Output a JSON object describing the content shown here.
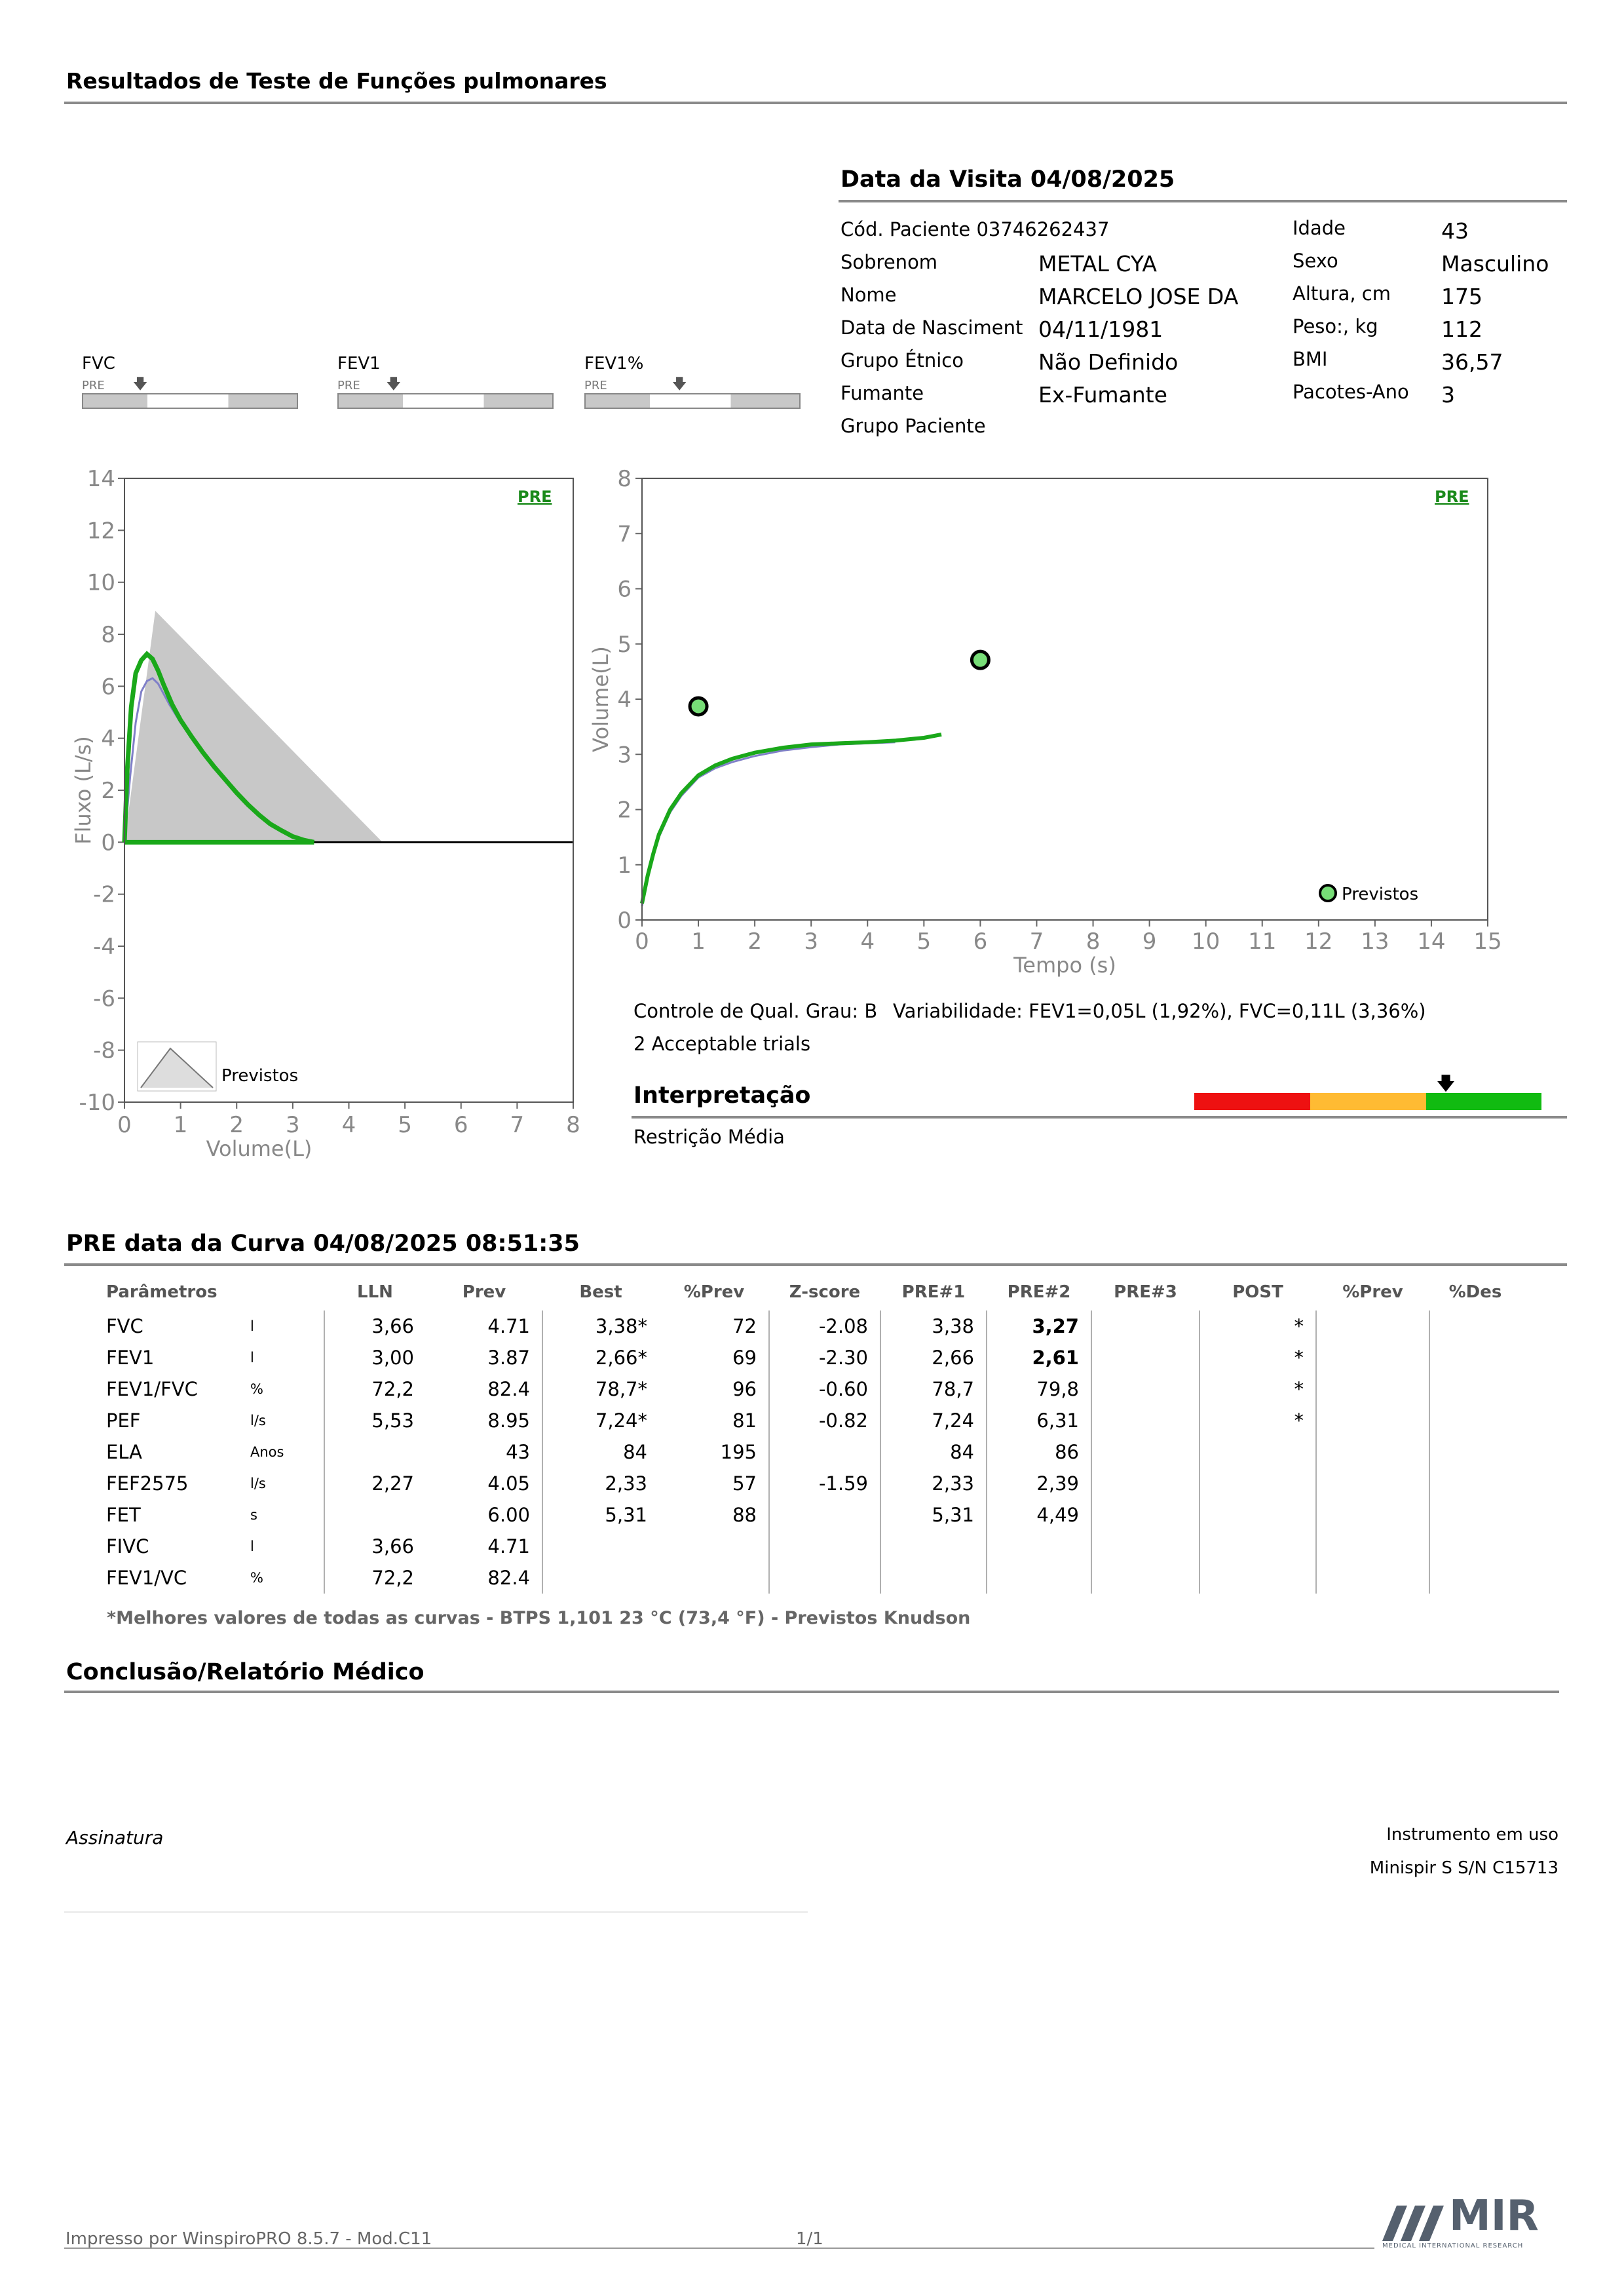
{
  "header": {
    "title": "Resultados de Teste de Funções pulmonares"
  },
  "visit": {
    "title": "Data da Visita 04/08/2025"
  },
  "patient": {
    "left": [
      {
        "label": "Cód. Paciente 03746262437",
        "value": ""
      },
      {
        "label": "Sobrenom",
        "value": "METAL CYA"
      },
      {
        "label": "Nome",
        "value": "MARCELO JOSE DA"
      },
      {
        "label": "Data de Nasciment",
        "value": "04/11/1981"
      },
      {
        "label": "Grupo Étnico",
        "value": "Não Definido"
      },
      {
        "label": "Fumante",
        "value": "Ex-Fumante"
      },
      {
        "label": "Grupo Paciente",
        "value": ""
      }
    ],
    "right": [
      {
        "label": "Idade",
        "value": "43"
      },
      {
        "label": "Sexo",
        "value": "Masculino"
      },
      {
        "label": "Altura, cm",
        "value": "175"
      },
      {
        "label": "Peso:, kg",
        "value": "112"
      },
      {
        "label": "BMI",
        "value": "36,57"
      },
      {
        "label": "Pacotes-Ano",
        "value": "3"
      }
    ]
  },
  "indicators": [
    {
      "label": "FVC",
      "pre": "PRE",
      "marker": 0.26
    },
    {
      "label": "FEV1",
      "pre": "PRE",
      "marker": 0.25
    },
    {
      "label": "FEV1%",
      "pre": "PRE",
      "marker": 0.43
    }
  ],
  "chart_data": [
    {
      "type": "line",
      "name": "flow-volume",
      "tag": "PRE",
      "xlabel": "Volume(L)",
      "ylabel": "Fluxo (L/s)",
      "xlim": [
        0,
        8
      ],
      "ylim": [
        -10,
        14
      ],
      "x_ticks": [
        "0",
        "1",
        "2",
        "3",
        "4",
        "5",
        "6",
        "7",
        "8"
      ],
      "y_ticks": [
        "14",
        "12",
        "10",
        "8",
        "6",
        "4",
        "2",
        "0",
        "-2",
        "-4",
        "-6",
        "-8",
        "-10"
      ],
      "legend": "Previstos",
      "predicted": {
        "x": [
          0,
          0.55,
          4.6
        ],
        "y": [
          0,
          8.9,
          0
        ]
      },
      "series": [
        {
          "name": "PRE#1",
          "color": "#1aa81a",
          "x": [
            0,
            0.05,
            0.12,
            0.2,
            0.3,
            0.4,
            0.5,
            0.6,
            0.7,
            0.85,
            1.0,
            1.2,
            1.4,
            1.6,
            1.8,
            2.0,
            2.2,
            2.4,
            2.6,
            2.8,
            3.0,
            3.2,
            3.38
          ],
          "y": [
            0,
            2.8,
            5.2,
            6.5,
            7.0,
            7.24,
            7.05,
            6.6,
            6.05,
            5.3,
            4.7,
            4.05,
            3.45,
            2.9,
            2.4,
            1.9,
            1.45,
            1.05,
            0.7,
            0.45,
            0.22,
            0.08,
            0
          ]
        },
        {
          "name": "PRE#2",
          "color": "#8080c8",
          "x": [
            0,
            0.1,
            0.2,
            0.3,
            0.4,
            0.5,
            0.6,
            0.8,
            1.0,
            1.4,
            1.8,
            2.2,
            2.6,
            3.0,
            3.27
          ],
          "y": [
            0,
            2.5,
            4.6,
            5.8,
            6.2,
            6.31,
            6.1,
            5.3,
            4.6,
            3.4,
            2.35,
            1.45,
            0.7,
            0.2,
            0
          ]
        }
      ]
    },
    {
      "type": "line",
      "name": "volume-time",
      "tag": "PRE",
      "xlabel": "Tempo (s)",
      "ylabel": "Volume(L)",
      "xlim": [
        0,
        15
      ],
      "ylim": [
        0,
        8
      ],
      "x_ticks": [
        "0",
        "1",
        "2",
        "3",
        "4",
        "5",
        "6",
        "7",
        "8",
        "9",
        "10",
        "11",
        "12",
        "13",
        "14",
        "15"
      ],
      "y_ticks": [
        "8",
        "7",
        "6",
        "5",
        "4",
        "3",
        "2",
        "1",
        "0"
      ],
      "legend": "Previstos",
      "predicted_points": [
        {
          "x": 1.0,
          "y": 3.87
        },
        {
          "x": 6.0,
          "y": 4.71
        }
      ],
      "series": [
        {
          "name": "PRE#1",
          "color": "#1aa81a",
          "x": [
            0,
            0.1,
            0.2,
            0.3,
            0.5,
            0.7,
            1.0,
            1.3,
            1.6,
            2.0,
            2.5,
            3.0,
            3.5,
            4.0,
            4.5,
            5.0,
            5.31
          ],
          "y": [
            0.3,
            0.8,
            1.2,
            1.55,
            2.0,
            2.3,
            2.62,
            2.8,
            2.92,
            3.03,
            3.12,
            3.18,
            3.2,
            3.22,
            3.25,
            3.3,
            3.36
          ]
        },
        {
          "name": "PRE#2",
          "color": "#8080c8",
          "x": [
            0,
            0.1,
            0.2,
            0.3,
            0.5,
            0.7,
            1.0,
            1.3,
            1.6,
            2.0,
            2.5,
            3.0,
            3.5,
            4.0,
            4.49
          ],
          "y": [
            0.25,
            0.75,
            1.15,
            1.5,
            1.95,
            2.25,
            2.58,
            2.75,
            2.86,
            2.97,
            3.07,
            3.13,
            3.18,
            3.2,
            3.22
          ]
        }
      ]
    }
  ],
  "quality": {
    "grade": "Controle de Qual. Grau: B",
    "variability": "Variabilidade: FEV1=0,05L (1,92%), FVC=0,11L (3,36%)",
    "trials": "2 Acceptable trials"
  },
  "interpretation": {
    "title": "Interpretação",
    "result": "Restrição Média",
    "scale_colors": [
      "#ee1111",
      "#ffbb33",
      "#11bb11"
    ],
    "marker": 0.72
  },
  "curve": {
    "title": "PRE data da Curva 04/08/2025   08:51:35"
  },
  "table": {
    "headers": [
      "Parâmetros",
      "",
      "LLN",
      "Prev",
      "Best",
      "%Prev",
      "Z-score",
      "PRE#1",
      "PRE#2",
      "PRE#3",
      "POST",
      "%Prev",
      "%Des"
    ],
    "rows": [
      [
        "FVC",
        "l",
        "3,66",
        "4.71",
        "3,38*",
        "72",
        "-2.08",
        "3,38",
        "3,27",
        "",
        "*",
        "",
        ""
      ],
      [
        "FEV1",
        "l",
        "3,00",
        "3.87",
        "2,66*",
        "69",
        "-2.30",
        "2,66",
        "2,61",
        "",
        "*",
        "",
        ""
      ],
      [
        "FEV1/FVC",
        "%",
        "72,2",
        "82.4",
        "78,7*",
        "96",
        "-0.60",
        "78,7",
        "79,8",
        "",
        "*",
        "",
        ""
      ],
      [
        "PEF",
        "l/s",
        "5,53",
        "8.95",
        "7,24*",
        "81",
        "-0.82",
        "7,24",
        "6,31",
        "",
        "*",
        "",
        ""
      ],
      [
        "ELA",
        "Anos",
        "",
        "43",
        "84",
        "195",
        "",
        "84",
        "86",
        "",
        "",
        "",
        ""
      ],
      [
        "FEF2575",
        "l/s",
        "2,27",
        "4.05",
        "2,33",
        "57",
        "-1.59",
        "2,33",
        "2,39",
        "",
        "",
        "",
        ""
      ],
      [
        "FET",
        "s",
        "",
        "6.00",
        "5,31",
        "88",
        "",
        "5,31",
        "4,49",
        "",
        "",
        "",
        ""
      ],
      [
        "FIVC",
        "l",
        "3,66",
        "4.71",
        "",
        "",
        "",
        "",
        "",
        "",
        "",
        "",
        ""
      ],
      [
        "FEV1/VC",
        "%",
        "72,2",
        "82.4",
        "",
        "",
        "",
        "",
        "",
        "",
        "",
        "",
        ""
      ]
    ],
    "bold_cells": [
      [
        0,
        8
      ],
      [
        1,
        8
      ]
    ],
    "footnote": "*Melhores valores de todas as curvas - BTPS  1,101  23 °C  (73,4 °F) - Previstos Knudson"
  },
  "conclusion": {
    "title": "Conclusão/Relatório Médico"
  },
  "signature": {
    "label": "Assinatura"
  },
  "instrument": {
    "label": "Instrumento em uso",
    "value": "Minispir S S/N C15713"
  },
  "footer": {
    "printed_by": "Impresso por WinspiroPRO  8.5.7 - Mod.C11",
    "page": "1/1",
    "logo_text": "MIR",
    "logo_sub": "MEDICAL INTERNATIONAL RESEARCH"
  }
}
